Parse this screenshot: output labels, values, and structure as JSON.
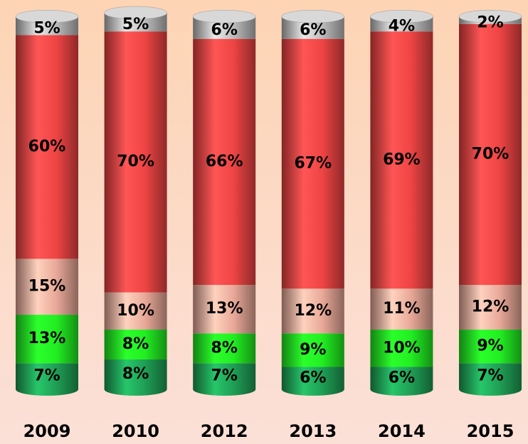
{
  "chart_data": {
    "type": "stacked-cylinder",
    "categories": [
      "2009",
      "2010",
      "2012",
      "2013",
      "2014",
      "2015"
    ],
    "series": [
      {
        "color": "#1f9e55",
        "values": [
          7,
          8,
          7,
          6,
          6,
          7
        ],
        "value_labels": [
          "7%",
          "8%",
          "7%",
          "6%",
          "6%",
          "7%"
        ]
      },
      {
        "color": "#22ee22",
        "values": [
          13,
          8,
          8,
          9,
          10,
          9
        ],
        "value_labels": [
          "13%",
          "8%",
          "8%",
          "9%",
          "10%",
          "9%"
        ]
      },
      {
        "color": "#e8a898",
        "values": [
          15,
          10,
          13,
          12,
          11,
          12
        ],
        "value_labels": [
          "15%",
          "10%",
          "13%",
          "12%",
          "11%",
          "12%"
        ]
      },
      {
        "color": "#ee4444",
        "values": [
          60,
          70,
          66,
          67,
          69,
          70
        ],
        "value_labels": [
          "60%",
          "70%",
          "66%",
          "67%",
          "69%",
          "70%"
        ]
      },
      {
        "color": "#bbbbbb",
        "values": [
          5,
          5,
          6,
          6,
          4,
          2
        ],
        "value_labels": [
          "5%",
          "5%",
          "6%",
          "6%",
          "4%",
          "2%"
        ]
      }
    ]
  }
}
